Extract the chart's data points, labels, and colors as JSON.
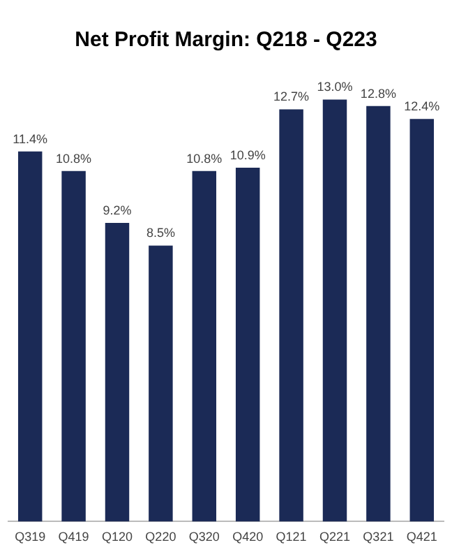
{
  "chart_data": {
    "type": "bar",
    "title": "Net Profit Margin: Q218 - Q223",
    "categories": [
      "Q319",
      "Q419",
      "Q120",
      "Q220",
      "Q320",
      "Q420",
      "Q121",
      "Q221",
      "Q321",
      "Q421"
    ],
    "values": [
      11.4,
      10.8,
      9.2,
      8.5,
      10.8,
      10.9,
      12.7,
      13.0,
      12.8,
      12.4
    ],
    "value_labels": [
      "11.4%",
      "10.8%",
      "9.2%",
      "8.5%",
      "10.8%",
      "10.9%",
      "12.7%",
      "13.0%",
      "12.8%",
      "12.4%"
    ],
    "color": "#1b2a56",
    "grid": false,
    "legend": false,
    "tick_labels": "x"
  }
}
